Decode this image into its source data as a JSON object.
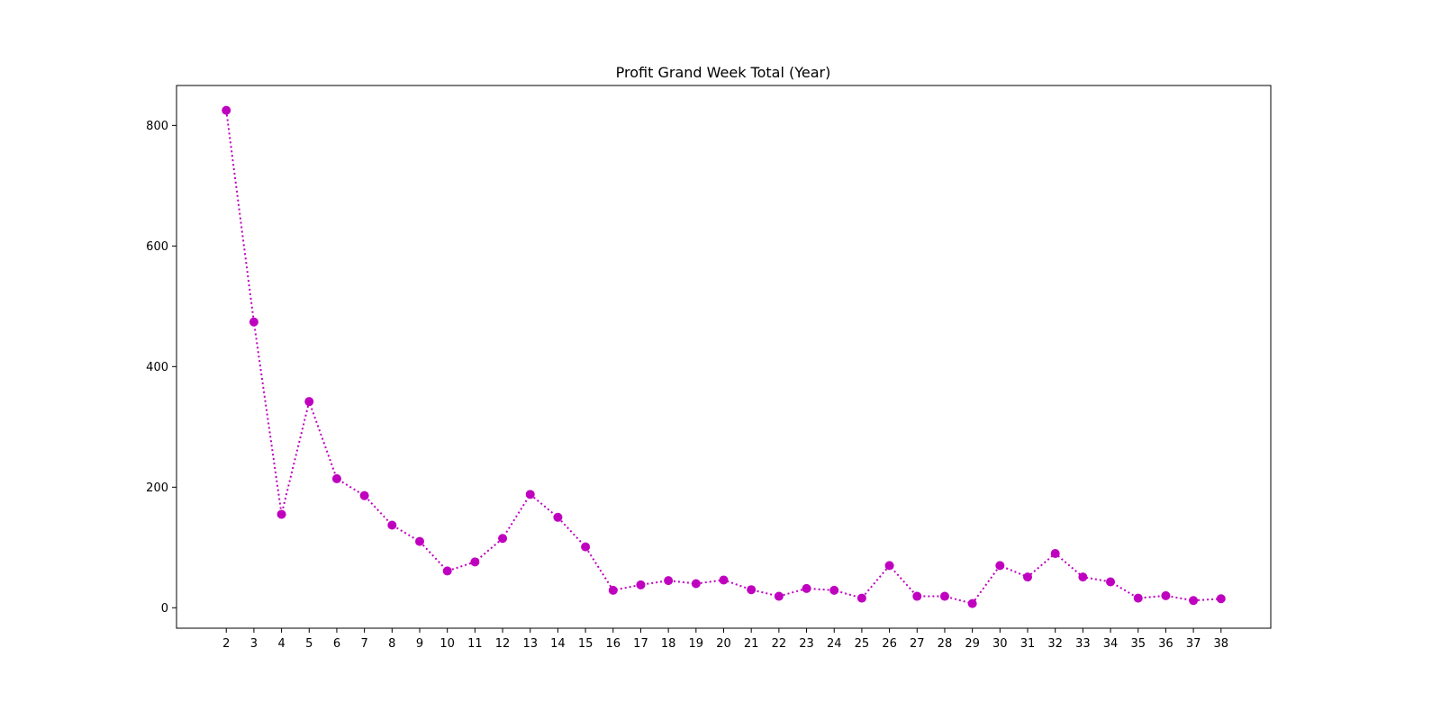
{
  "chart_data": {
    "type": "line",
    "title": "Profit Grand Week Total (Year)",
    "xlabel": "",
    "ylabel": "",
    "x": [
      2,
      3,
      4,
      5,
      6,
      7,
      8,
      9,
      10,
      11,
      12,
      13,
      14,
      15,
      16,
      17,
      18,
      19,
      20,
      21,
      22,
      23,
      24,
      25,
      26,
      27,
      28,
      29,
      30,
      31,
      32,
      33,
      34,
      35,
      36,
      37,
      38
    ],
    "series": [
      {
        "values": [
          825,
          474,
          155,
          342,
          214,
          186,
          137,
          110,
          61,
          76,
          115,
          188,
          150,
          101,
          29,
          38,
          45,
          40,
          46,
          30,
          19,
          32,
          29,
          16,
          70,
          19,
          19,
          7,
          70,
          51,
          90,
          51,
          43,
          16,
          20,
          12,
          15
        ],
        "color": "#bf00bf",
        "line_style": "dotted",
        "marker": "circle"
      }
    ],
    "xlim": [
      0.2,
      39.8
    ],
    "ylim": [
      -33.9,
      866.2
    ],
    "yticks": [
      0,
      200,
      400,
      600,
      800
    ],
    "grid": false,
    "legend": "none"
  }
}
